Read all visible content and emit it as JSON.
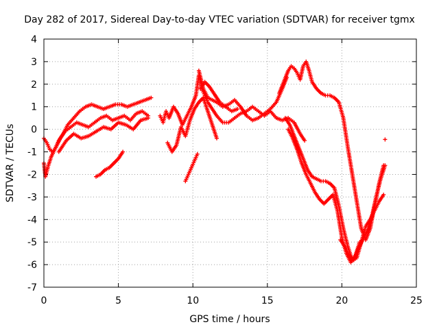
{
  "chart_data": {
    "type": "scatter",
    "title": "Day 282 of 2017, Sidereal Day-to-day VTEC variation (SDTVAR) for receiver tgmx",
    "xlabel": "GPS time / hours",
    "ylabel": "SDTVAR / TECUs",
    "xlim": [
      0,
      25
    ],
    "ylim": [
      -7,
      4
    ],
    "xticks": [
      "0",
      "5",
      "10",
      "15",
      "20",
      "25"
    ],
    "yticks": [
      "-7",
      "-6",
      "-5",
      "-4",
      "-3",
      "-2",
      "-1",
      "0",
      "1",
      "2",
      "3",
      "4"
    ],
    "grid": true,
    "marker": "plus",
    "color": "#ff0000",
    "series": [
      {
        "x": [
          0.0,
          0.2,
          0.4,
          0.6,
          0.8,
          1.0,
          1.3,
          1.6,
          2.0,
          2.4,
          2.8,
          3.2,
          3.6,
          4.0,
          4.4,
          4.8,
          5.2,
          5.6,
          6.0,
          6.4,
          6.8,
          7.2
        ],
        "y": [
          -0.4,
          -0.6,
          -0.9,
          -1.0,
          -0.8,
          -0.5,
          -0.2,
          0.2,
          0.5,
          0.8,
          1.0,
          1.1,
          1.0,
          0.9,
          1.0,
          1.1,
          1.1,
          1.0,
          1.1,
          1.2,
          1.3,
          1.4
        ]
      },
      {
        "x": [
          0.0,
          0.1,
          0.3,
          0.5,
          0.8,
          1.1,
          1.4,
          1.8,
          2.2,
          2.6,
          3.0,
          3.4,
          3.8,
          4.2,
          4.6,
          5.0,
          5.4,
          5.8,
          6.2,
          6.6,
          7.0
        ],
        "y": [
          -1.5,
          -2.1,
          -1.6,
          -1.2,
          -0.8,
          -0.4,
          -0.1,
          0.1,
          0.3,
          0.2,
          0.1,
          0.3,
          0.5,
          0.6,
          0.4,
          0.5,
          0.6,
          0.4,
          0.7,
          0.8,
          0.6
        ]
      },
      {
        "x": [
          1.0,
          1.5,
          2.0,
          2.5,
          3.0,
          3.5,
          4.0,
          4.5,
          5.0,
          5.5,
          6.0,
          6.5,
          7.0
        ],
        "y": [
          -1.0,
          -0.5,
          -0.2,
          -0.4,
          -0.3,
          -0.1,
          0.1,
          0.0,
          0.3,
          0.2,
          0.0,
          0.4,
          0.5
        ]
      },
      {
        "x": [
          3.5,
          3.8,
          4.1,
          4.4,
          4.7,
          5.0,
          5.3
        ],
        "y": [
          -2.1,
          -2.0,
          -1.8,
          -1.7,
          -1.5,
          -1.3,
          -1.0
        ]
      },
      {
        "x": [
          7.8,
          8.0,
          8.2,
          8.4,
          8.7,
          9.0,
          9.3,
          9.6,
          9.9,
          10.2,
          10.4,
          10.6,
          10.8,
          11.0,
          11.3,
          11.6,
          12.0,
          12.4,
          12.8,
          13.2,
          13.6,
          14.0,
          14.4,
          14.8,
          15.2,
          15.6,
          16.0,
          16.4,
          16.8,
          17.2,
          17.5
        ],
        "y": [
          0.6,
          0.3,
          0.8,
          0.5,
          1.0,
          0.7,
          0.2,
          0.6,
          1.0,
          1.5,
          2.4,
          1.8,
          1.5,
          1.2,
          0.9,
          0.6,
          0.3,
          0.3,
          0.5,
          0.7,
          0.8,
          1.0,
          0.8,
          0.6,
          0.8,
          0.5,
          0.4,
          0.5,
          0.3,
          -0.2,
          -0.5
        ]
      },
      {
        "x": [
          8.3,
          8.6,
          8.9,
          9.2,
          9.5,
          9.8,
          10.1,
          10.4,
          10.7,
          11.0,
          11.3,
          11.6
        ],
        "y": [
          -0.6,
          -1.0,
          -0.7,
          0.1,
          -0.3,
          0.4,
          0.9,
          1.2,
          1.4,
          0.8,
          0.2,
          -0.4
        ]
      },
      {
        "x": [
          9.5,
          9.7,
          9.9,
          10.1,
          10.3
        ],
        "y": [
          -2.3,
          -2.0,
          -1.7,
          -1.4,
          -1.1
        ]
      },
      {
        "x": [
          10.4,
          10.7,
          11.0,
          11.3,
          11.6,
          12.0,
          12.4,
          12.8,
          13.2,
          13.6,
          14.0,
          14.4,
          14.8,
          15.2,
          15.6,
          16.0,
          16.3
        ],
        "y": [
          2.6,
          1.8,
          1.4,
          1.3,
          1.2,
          1.0,
          1.1,
          1.3,
          1.0,
          0.6,
          0.4,
          0.5,
          0.7,
          0.9,
          1.2,
          1.8,
          2.3
        ]
      },
      {
        "x": [
          10.5,
          10.8,
          11.1,
          11.4,
          11.8,
          12.2,
          12.6,
          13.0
        ],
        "y": [
          1.8,
          2.1,
          1.9,
          1.6,
          1.2,
          1.0,
          0.8,
          0.9
        ]
      },
      {
        "x": [
          15.8,
          16.1,
          16.4,
          16.6,
          16.8,
          17.0,
          17.2,
          17.4,
          17.6,
          17.8,
          18.0,
          18.3,
          18.6,
          18.9,
          19.2,
          19.5,
          19.8,
          20.1,
          20.4,
          20.7,
          21.0,
          21.3,
          21.6,
          21.9,
          22.2,
          22.5,
          22.8
        ],
        "y": [
          1.6,
          2.1,
          2.6,
          2.8,
          2.7,
          2.5,
          2.2,
          2.8,
          3.0,
          2.6,
          2.1,
          1.8,
          1.6,
          1.5,
          1.5,
          1.4,
          1.2,
          0.5,
          -0.8,
          -2.0,
          -3.2,
          -4.4,
          -4.9,
          -4.4,
          -3.4,
          -2.4,
          -1.6
        ]
      },
      {
        "x": [
          16.2,
          16.5,
          16.8,
          17.1,
          17.4,
          17.7,
          18.0,
          18.3,
          18.6,
          18.9,
          19.2,
          19.5,
          19.8,
          20.1,
          20.4,
          20.7,
          21.0,
          21.3,
          21.6,
          21.9,
          22.2,
          22.5,
          22.8
        ],
        "y": [
          0.5,
          0.2,
          -0.3,
          -0.8,
          -1.3,
          -1.8,
          -2.1,
          -2.2,
          -2.3,
          -2.3,
          -2.4,
          -2.6,
          -3.4,
          -4.4,
          -5.2,
          -5.8,
          -5.7,
          -5.0,
          -4.3,
          -4.0,
          -3.6,
          -3.2,
          -2.9
        ]
      },
      {
        "x": [
          16.4,
          16.7,
          17.0,
          17.3,
          17.6,
          17.9,
          18.2,
          18.5,
          18.8,
          19.1,
          19.4,
          19.7,
          20.0,
          20.3,
          20.6,
          20.9,
          21.2
        ],
        "y": [
          0.0,
          -0.4,
          -0.9,
          -1.5,
          -2.0,
          -2.4,
          -2.8,
          -3.1,
          -3.3,
          -3.1,
          -2.9,
          -3.6,
          -4.8,
          -5.5,
          -5.9,
          -5.6,
          -5.0
        ]
      },
      {
        "x": [
          19.9,
          20.2,
          20.5,
          20.8,
          21.1,
          21.4,
          21.7,
          22.0,
          22.3,
          22.6,
          22.9
        ],
        "y": [
          -4.9,
          -5.2,
          -5.6,
          -5.8,
          -5.3,
          -4.9,
          -4.5,
          -3.9,
          -3.0,
          -2.2,
          -1.6
        ]
      },
      {
        "x": [
          22.9
        ],
        "y": [
          -0.45
        ]
      }
    ]
  }
}
